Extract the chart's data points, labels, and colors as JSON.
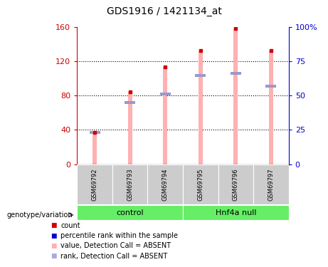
{
  "title": "GDS1916 / 1421134_at",
  "samples": [
    "GSM69792",
    "GSM69793",
    "GSM69794",
    "GSM69795",
    "GSM69796",
    "GSM69797"
  ],
  "pink_bar_heights": [
    37,
    84,
    113,
    132,
    158,
    132
  ],
  "blue_marker_heights": [
    37,
    72,
    82,
    103,
    106,
    91
  ],
  "blue_marker_present": [
    true,
    true,
    true,
    true,
    true,
    true
  ],
  "red_dot_values": [
    37,
    84,
    113,
    132,
    158,
    132
  ],
  "ylim_left": [
    0,
    160
  ],
  "ylim_right": [
    0,
    100
  ],
  "yticks_left": [
    0,
    40,
    80,
    120,
    160
  ],
  "yticks_right": [
    0,
    25,
    50,
    75,
    100
  ],
  "ytick_labels_left": [
    "0",
    "40",
    "80",
    "120",
    "160"
  ],
  "ytick_labels_right": [
    "0",
    "25",
    "50",
    "75",
    "100%"
  ],
  "left_axis_color": "#cc0000",
  "right_axis_color": "#0000cc",
  "pink_bar_color": "#ffb0b0",
  "blue_marker_color": "#9999cc",
  "red_dot_color": "#cc0000",
  "control_group_color": "#66ee66",
  "hnf4a_group_color": "#66ee66",
  "sample_box_color": "#cccccc",
  "bar_width": 0.12,
  "legend_items": [
    {
      "color": "#cc0000",
      "label": "count"
    },
    {
      "color": "#0000cc",
      "label": "percentile rank within the sample"
    },
    {
      "color": "#ffb0b0",
      "label": "value, Detection Call = ABSENT"
    },
    {
      "color": "#aaaadd",
      "label": "rank, Detection Call = ABSENT"
    }
  ],
  "group_labels": [
    "control",
    "Hnf4a null"
  ],
  "group_ranges": [
    [
      0,
      3
    ],
    [
      3,
      6
    ]
  ]
}
